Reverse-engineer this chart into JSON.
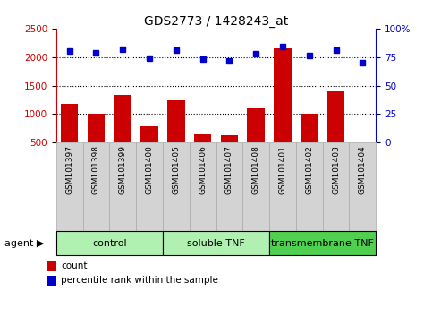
{
  "title": "GDS2773 / 1428243_at",
  "samples": [
    "GSM101397",
    "GSM101398",
    "GSM101399",
    "GSM101400",
    "GSM101405",
    "GSM101406",
    "GSM101407",
    "GSM101408",
    "GSM101401",
    "GSM101402",
    "GSM101403",
    "GSM101404"
  ],
  "counts": [
    1180,
    1010,
    1330,
    790,
    1250,
    640,
    635,
    1100,
    2150,
    1010,
    1400,
    500
  ],
  "percentiles": [
    80,
    79,
    82,
    74,
    81,
    73,
    72,
    78,
    84,
    76,
    81,
    70
  ],
  "groups": [
    {
      "label": "control",
      "start": 0,
      "end": 4,
      "color": "#90EE90"
    },
    {
      "label": "soluble TNF",
      "start": 4,
      "end": 8,
      "color": "#90EE90"
    },
    {
      "label": "transmembrane TNF",
      "start": 8,
      "end": 12,
      "color": "#3CB371"
    }
  ],
  "bar_color": "#CC0000",
  "dot_color": "#0000CC",
  "left_ylim": [
    500,
    2500
  ],
  "right_ylim": [
    0,
    100
  ],
  "left_yticks": [
    500,
    1000,
    1500,
    2000,
    2500
  ],
  "right_yticks": [
    0,
    25,
    50,
    75,
    100
  ],
  "right_yticklabels": [
    "0",
    "25",
    "50",
    "75",
    "100%"
  ],
  "grid_values": [
    1000,
    1500,
    2000
  ],
  "plot_bg": "#ffffff",
  "tick_bg": "#d3d3d3",
  "agent_label": "agent",
  "legend_count": "count",
  "legend_pct": "percentile rank within the sample"
}
